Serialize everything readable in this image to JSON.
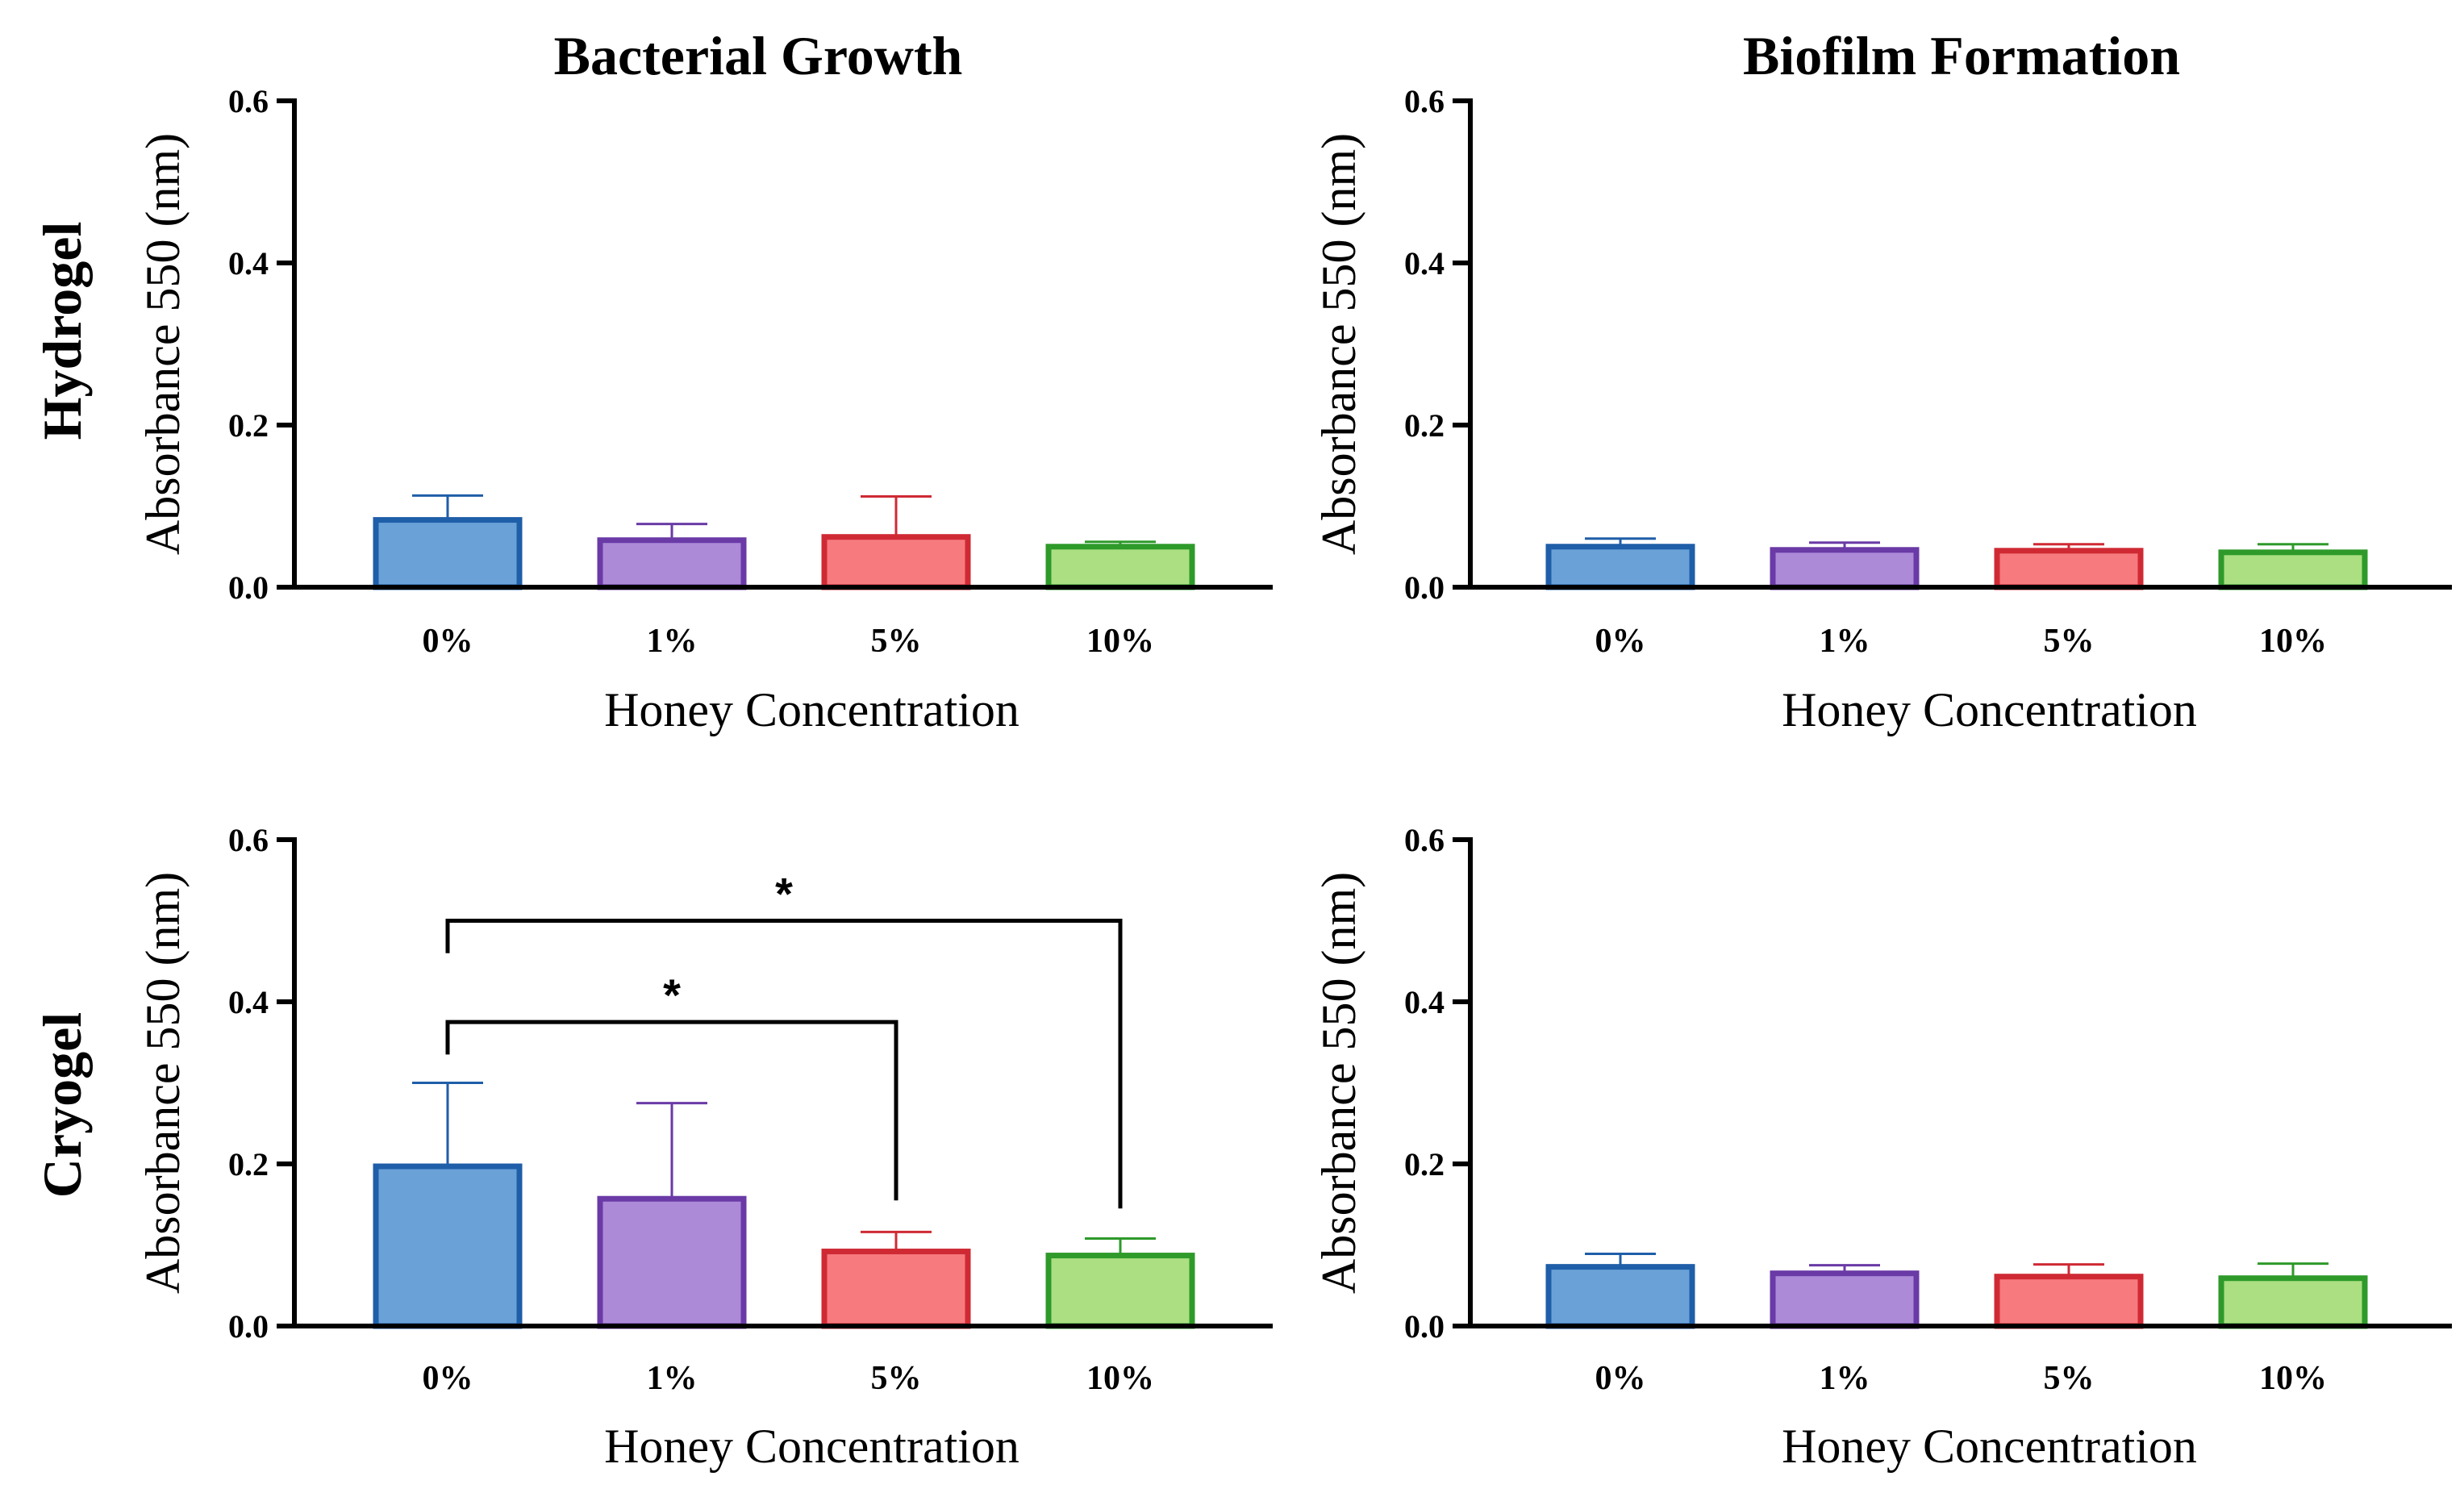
{
  "figure": {
    "col_titles": [
      "Bacterial Growth",
      "Biofilm Formation"
    ],
    "row_labels": [
      "Hydrogel",
      "Cryogel"
    ]
  },
  "colors": {
    "fills": [
      "#6aa2d8",
      "#ad8ad8",
      "#f77a7e",
      "#abdf82"
    ],
    "strokes": [
      "#1f5ea8",
      "#6a3aa6",
      "#cf2a34",
      "#2e9a2a"
    ],
    "axis": "#000000"
  },
  "chart_data": [
    {
      "id": "hydrogel-growth",
      "type": "bar",
      "title": "Bacterial Growth",
      "row": "Hydrogel",
      "categories": [
        "0%",
        "1%",
        "5%",
        "10%"
      ],
      "values": [
        0.083,
        0.058,
        0.062,
        0.05
      ],
      "errors": [
        0.03,
        0.02,
        0.05,
        0.006
      ],
      "xlabel": "Honey Concentration",
      "ylabel": "Absorbance 550 (nm)",
      "ylim": [
        0,
        0.6
      ],
      "yticks": [
        "0.0",
        "0.2",
        "0.4",
        "0.6"
      ],
      "significance": []
    },
    {
      "id": "hydrogel-biofilm",
      "type": "bar",
      "title": "Biofilm Formation",
      "row": "Hydrogel",
      "categories": [
        "0%",
        "1%",
        "5%",
        "10%"
      ],
      "values": [
        0.05,
        0.046,
        0.045,
        0.043
      ],
      "errors": [
        0.01,
        0.009,
        0.008,
        0.01
      ],
      "xlabel": "Honey Concentration",
      "ylabel": "Absorbance 550 (nm)",
      "ylim": [
        0,
        0.6
      ],
      "yticks": [
        "0.0",
        "0.2",
        "0.4",
        "0.6"
      ],
      "significance": []
    },
    {
      "id": "cryogel-growth",
      "type": "bar",
      "title": "Bacterial Growth",
      "row": "Cryogel",
      "categories": [
        "0%",
        "1%",
        "5%",
        "10%"
      ],
      "values": [
        0.197,
        0.157,
        0.092,
        0.087
      ],
      "errors": [
        0.103,
        0.118,
        0.024,
        0.021
      ],
      "xlabel": "Honey Concentration",
      "ylabel": "Absorbance 550 (nm)",
      "ylim": [
        0,
        0.6
      ],
      "yticks": [
        "0.0",
        "0.2",
        "0.4",
        "0.6"
      ],
      "significance": [
        {
          "from": 0,
          "to": 2,
          "label": "*",
          "level": 0.375,
          "drop_to": 0.155
        },
        {
          "from": 0,
          "to": 3,
          "label": "*",
          "level": 0.5,
          "drop_to": 0.145
        }
      ]
    },
    {
      "id": "cryogel-biofilm",
      "type": "bar",
      "title": "Biofilm Formation",
      "row": "Cryogel",
      "categories": [
        "0%",
        "1%",
        "5%",
        "10%"
      ],
      "values": [
        0.073,
        0.065,
        0.061,
        0.059
      ],
      "errors": [
        0.016,
        0.01,
        0.015,
        0.018
      ],
      "xlabel": "Honey Concentration",
      "ylabel": "Absorbance 550 (nm)",
      "ylim": [
        0,
        0.6
      ],
      "yticks": [
        "0.0",
        "0.2",
        "0.4",
        "0.6"
      ],
      "significance": []
    }
  ]
}
